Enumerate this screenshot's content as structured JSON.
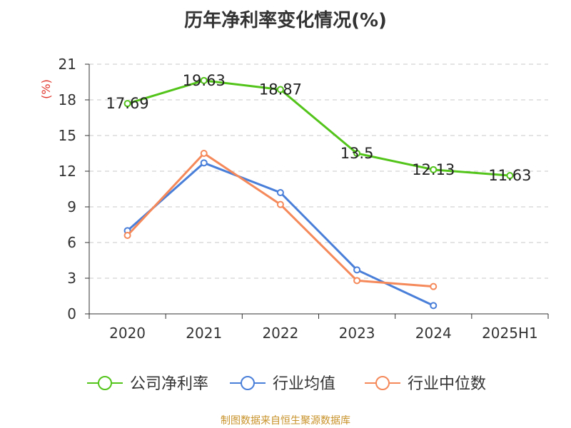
{
  "chart_data": {
    "type": "line",
    "title": "历年净利率变化情况(%)",
    "ylabel": "(%)",
    "xlabel": "",
    "categories": [
      "2020",
      "2021",
      "2022",
      "2023",
      "2024",
      "2025H1"
    ],
    "ylim": [
      0,
      21
    ],
    "yticks": [
      0,
      3,
      6,
      9,
      12,
      15,
      18,
      21
    ],
    "grid": true,
    "legend_position": "bottom",
    "series": [
      {
        "name": "公司净利率",
        "color": "#52c41a",
        "values": [
          17.69,
          19.63,
          18.87,
          13.5,
          12.13,
          11.63
        ],
        "data_labels": [
          "17.69",
          "19.63",
          "18.87",
          "13.5",
          "12.13",
          "11.63"
        ]
      },
      {
        "name": "行业均值",
        "color": "#4a7fd9",
        "values": [
          7.0,
          12.7,
          10.2,
          3.7,
          0.7,
          null
        ]
      },
      {
        "name": "行业中位数",
        "color": "#f5895a",
        "values": [
          6.6,
          13.5,
          9.2,
          2.8,
          2.3,
          null
        ]
      }
    ]
  },
  "source": "制图数据来自恒生聚源数据库"
}
